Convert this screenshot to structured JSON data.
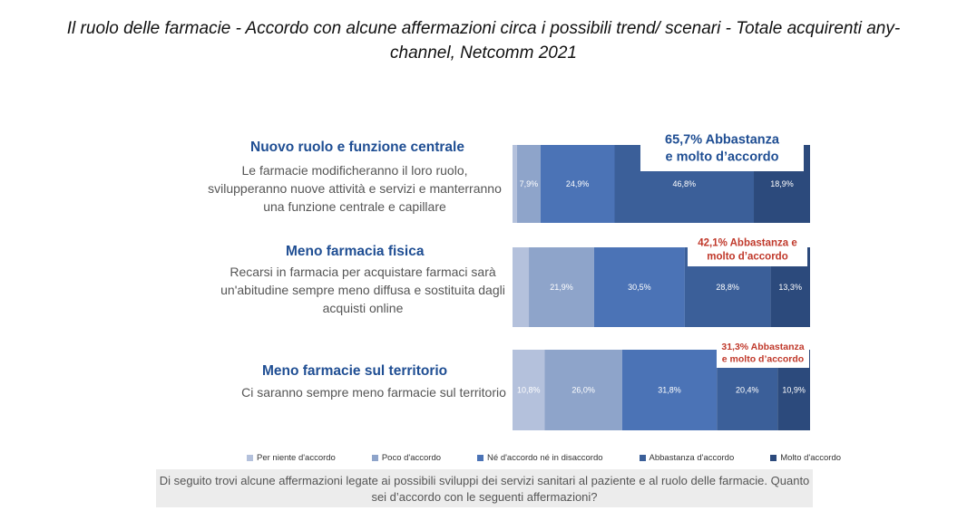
{
  "title": "Il ruolo delle farmacie - Accordo con alcune affermazioni circa i possibili trend/ scenari - Totale acquirenti any-channel, Netcomm 2021",
  "questions": [
    {
      "title": "Nuovo ruolo e funzione centrale",
      "desc": "Le farmacie modificheranno il loro ruolo, svilupperanno nuove attività e servizi e manterranno una funzione centrale e capillare",
      "callout": "65,7% Abbastanza e molto d’accordo"
    },
    {
      "title": "Meno farmacia fisica",
      "desc": "Recarsi in farmacia per acquistare farmaci sarà un'abitudine sempre meno diffusa e sostituita dagli acquisti online",
      "callout": "42,1% Abbastanza e molto d’accordo"
    },
    {
      "title": "Meno farmacie sul territorio",
      "desc": "Ci saranno sempre meno farmacie sul territorio",
      "callout": "31,3% Abbastanza e molto d’accordo"
    }
  ],
  "note": "Di seguito trovi alcune affermazioni legate ai possibili sviluppi dei servizi sanitari al paziente e al ruolo delle farmacie. Quanto sei d’accordo con le seguenti affermazioni?",
  "chart_data": {
    "type": "bar",
    "orientation": "horizontal-stacked-100",
    "categories": [
      "Nuovo ruolo e funzione centrale",
      "Meno farmacia fisica",
      "Meno farmacie sul territorio"
    ],
    "series": [
      {
        "name": "Per niente d'accordo",
        "color": "#b4c1dc",
        "values": [
          1.5,
          5.5,
          10.8
        ],
        "labels": [
          "",
          "",
          "10,8%"
        ]
      },
      {
        "name": "Poco d'accordo",
        "color": "#8ea4ca",
        "values": [
          7.9,
          21.9,
          26.0
        ],
        "labels": [
          "7,9%",
          "21,9%",
          "26,0%"
        ]
      },
      {
        "name": "Né d'accordo né in disaccordo",
        "color": "#4b73b6",
        "values": [
          24.9,
          30.5,
          31.8
        ],
        "labels": [
          "24,9%",
          "30,5%",
          "31,8%"
        ]
      },
      {
        "name": "Abbastanza d'accordo",
        "color": "#3b5f99",
        "values": [
          46.8,
          28.8,
          20.4
        ],
        "labels": [
          "46,8%",
          "28,8%",
          "20,4%"
        ]
      },
      {
        "name": "Molto d'accordo",
        "color": "#2c4a7c",
        "values": [
          18.9,
          13.3,
          10.9
        ],
        "labels": [
          "18,9%",
          "13,3%",
          "10,9%"
        ]
      }
    ],
    "xlim": [
      0,
      100
    ]
  }
}
